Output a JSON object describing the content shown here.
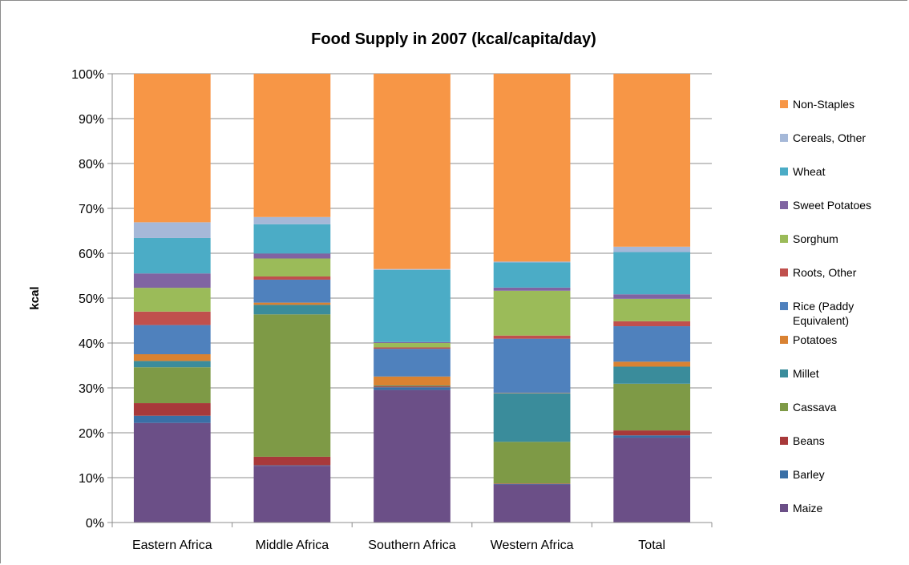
{
  "chart_data": {
    "type": "bar",
    "stacked": "percent",
    "title": "Food Supply  in 2007 (kcal/capita/day)",
    "xlabel": "",
    "ylabel": "kcal",
    "ylim": [
      0,
      100
    ],
    "yticks": [
      "0%",
      "10%",
      "20%",
      "30%",
      "40%",
      "50%",
      "60%",
      "70%",
      "80%",
      "90%",
      "100%"
    ],
    "grid": true,
    "legend_position": "right",
    "categories": [
      "Eastern Africa",
      "Middle Africa",
      "Southern Africa",
      "Western Africa",
      "Total"
    ],
    "series": [
      {
        "name": "Maize",
        "color": "#6b4f87",
        "values": [
          22.2,
          12.6,
          29.6,
          8.5,
          18.9
        ]
      },
      {
        "name": "Barley",
        "color": "#3a6fa6",
        "values": [
          1.6,
          0.1,
          0.6,
          0.1,
          0.5
        ]
      },
      {
        "name": "Beans",
        "color": "#a8393a",
        "values": [
          2.8,
          1.9,
          0.2,
          0.1,
          1.1
        ]
      },
      {
        "name": "Cassava",
        "color": "#7e9a46",
        "values": [
          8.0,
          31.6,
          0.1,
          9.3,
          10.4
        ]
      },
      {
        "name": "Millet",
        "color": "#3a8c9b",
        "values": [
          1.4,
          2.1,
          0.1,
          10.8,
          3.8
        ]
      },
      {
        "name": "Potatoes",
        "color": "#d98232",
        "values": [
          1.5,
          0.5,
          2.0,
          0.1,
          1.1
        ]
      },
      {
        "name": "Rice (Paddy Equivalent)",
        "color": "#4f81bd",
        "values": [
          6.5,
          5.1,
          6.2,
          12.1,
          7.9
        ]
      },
      {
        "name": "Roots, Other",
        "color": "#c0504d",
        "values": [
          3.0,
          0.7,
          0.3,
          0.7,
          1.1
        ]
      },
      {
        "name": "Sorghum",
        "color": "#9bbb59",
        "values": [
          5.3,
          4.0,
          1.0,
          10.0,
          5.0
        ]
      },
      {
        "name": "Sweet Potatoes",
        "color": "#8064a2",
        "values": [
          3.2,
          1.1,
          0.2,
          0.7,
          1.0
        ]
      },
      {
        "name": "Wheat",
        "color": "#4bacc6",
        "values": [
          7.9,
          6.5,
          16.1,
          5.6,
          9.4
        ]
      },
      {
        "name": "Cereals, Other",
        "color": "#a5b8d8",
        "values": [
          3.5,
          1.6,
          0.2,
          0.2,
          1.2
        ]
      },
      {
        "name": "Non-Staples",
        "color": "#f79646",
        "values": [
          33.1,
          31.8,
          43.6,
          41.9,
          38.5
        ]
      }
    ]
  }
}
